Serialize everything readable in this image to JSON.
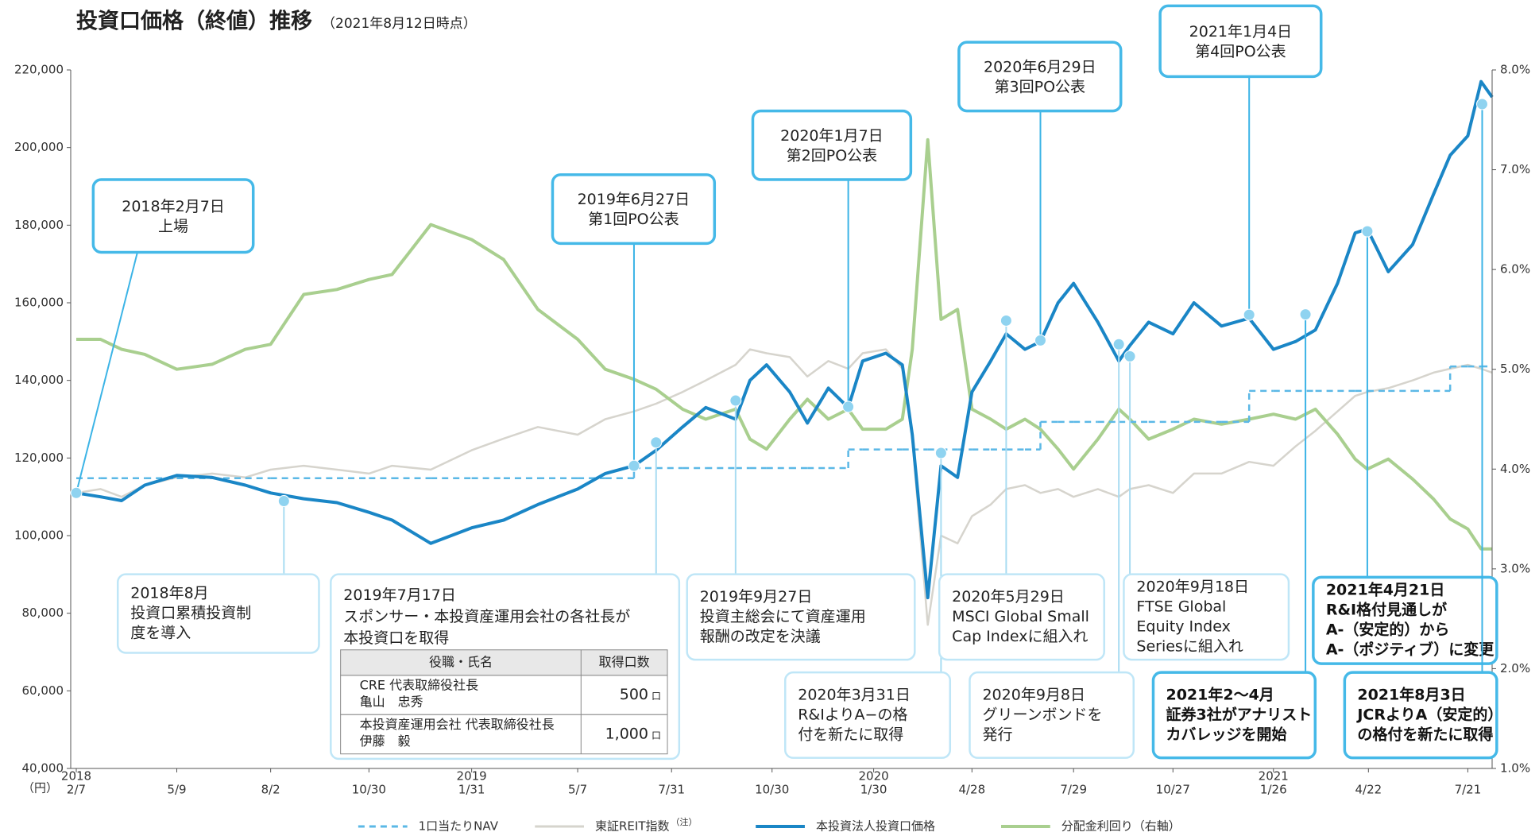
{
  "chart_data": {
    "type": "line",
    "title": "投資口価格（終値）推移",
    "subtitle": "（2021年8月12日時点）",
    "y_unit": "（円）",
    "xlim": [
      "2018-02-07",
      "2021-08-12"
    ],
    "xticks": [
      {
        "value": "2018-02-07",
        "label": "2/7",
        "year": "2018"
      },
      {
        "value": "2018-05-09",
        "label": "5/9"
      },
      {
        "value": "2018-08-02",
        "label": "8/2"
      },
      {
        "value": "2018-10-30",
        "label": "10/30"
      },
      {
        "value": "2019-01-31",
        "label": "1/31",
        "year": "2019"
      },
      {
        "value": "2019-05-07",
        "label": "5/7"
      },
      {
        "value": "2019-07-31",
        "label": "7/31"
      },
      {
        "value": "2019-10-30",
        "label": "10/30"
      },
      {
        "value": "2020-01-30",
        "label": "1/30",
        "year": "2020"
      },
      {
        "value": "2020-04-28",
        "label": "4/28"
      },
      {
        "value": "2020-07-29",
        "label": "7/29"
      },
      {
        "value": "2020-10-27",
        "label": "10/27"
      },
      {
        "value": "2021-01-26",
        "label": "1/26",
        "year": "2021"
      },
      {
        "value": "2021-04-22",
        "label": "4/22"
      },
      {
        "value": "2021-07-21",
        "label": "7/21"
      }
    ],
    "ylim": [
      40000,
      220000
    ],
    "yticks": [
      {
        "value": 40000,
        "label": "40,000"
      },
      {
        "value": 60000,
        "label": "60,000"
      },
      {
        "value": 80000,
        "label": "80,000"
      },
      {
        "value": 100000,
        "label": "100,000"
      },
      {
        "value": 120000,
        "label": "120,000"
      },
      {
        "value": 140000,
        "label": "140,000"
      },
      {
        "value": 160000,
        "label": "160,000"
      },
      {
        "value": 180000,
        "label": "180,000"
      },
      {
        "value": 200000,
        "label": "200,000"
      },
      {
        "value": 220000,
        "label": "220,000"
      }
    ],
    "y2lim": [
      1,
      8
    ],
    "y2ticks": [
      {
        "value": 1,
        "label": "1.0%"
      },
      {
        "value": 2,
        "label": "2.0%"
      },
      {
        "value": 3,
        "label": "3.0%"
      },
      {
        "value": 4,
        "label": "4.0%"
      },
      {
        "value": 5,
        "label": "5.0%"
      },
      {
        "value": 6,
        "label": "6.0%"
      },
      {
        "value": 7,
        "label": "7.0%"
      },
      {
        "value": 8,
        "label": "8.0%"
      }
    ],
    "x": [
      "2018-02-07",
      "2018-03-01",
      "2018-03-20",
      "2018-04-10",
      "2018-05-09",
      "2018-06-10",
      "2018-07-10",
      "2018-08-02",
      "2018-09-01",
      "2018-10-01",
      "2018-10-30",
      "2018-11-20",
      "2018-12-25",
      "2019-01-31",
      "2019-03-01",
      "2019-04-01",
      "2019-05-07",
      "2019-06-01",
      "2019-06-27",
      "2019-07-17",
      "2019-08-10",
      "2019-08-31",
      "2019-09-27",
      "2019-10-10",
      "2019-10-25",
      "2019-11-15",
      "2019-12-01",
      "2019-12-20",
      "2020-01-07",
      "2020-01-20",
      "2020-02-10",
      "2020-02-25",
      "2020-03-05",
      "2020-03-19",
      "2020-03-31",
      "2020-04-15",
      "2020-04-28",
      "2020-05-15",
      "2020-05-29",
      "2020-06-15",
      "2020-06-29",
      "2020-07-15",
      "2020-07-29",
      "2020-08-20",
      "2020-09-08",
      "2020-09-18",
      "2020-10-05",
      "2020-10-27",
      "2020-11-15",
      "2020-12-10",
      "2021-01-04",
      "2021-01-26",
      "2021-02-15",
      "2021-03-05",
      "2021-03-25",
      "2021-04-10",
      "2021-04-21",
      "2021-05-10",
      "2021-06-01",
      "2021-06-20",
      "2021-07-05",
      "2021-07-21",
      "2021-08-02",
      "2021-08-12"
    ],
    "series": [
      {
        "name": "1口当たりNAV",
        "color": "#5bb8e6",
        "dash": true,
        "step": true,
        "values": [
          114800,
          114800,
          114800,
          114800,
          114800,
          114800,
          114800,
          114800,
          114800,
          114800,
          114800,
          114800,
          114800,
          114800,
          114800,
          114800,
          114800,
          114800,
          117400,
          117400,
          117400,
          117400,
          117400,
          117400,
          117400,
          117400,
          117400,
          117400,
          122200,
          122200,
          122200,
          122200,
          122200,
          122200,
          122200,
          122200,
          122200,
          122200,
          122200,
          122200,
          129300,
          129300,
          129300,
          129300,
          129300,
          129300,
          129300,
          129300,
          129300,
          129300,
          137300,
          137300,
          137300,
          137300,
          137300,
          137300,
          137300,
          137300,
          137300,
          137300,
          143600,
          143600,
          143600,
          143600
        ]
      },
      {
        "name": "東証REIT指数",
        "note": "（注）",
        "color": "#d6d4cd",
        "values": [
          111000,
          112000,
          110000,
          113000,
          115000,
          116000,
          115000,
          117000,
          118000,
          117000,
          116000,
          118000,
          117000,
          122000,
          125000,
          128000,
          126000,
          130000,
          132000,
          134000,
          137000,
          140000,
          144000,
          148000,
          147000,
          146000,
          141000,
          145000,
          143000,
          147000,
          148000,
          143000,
          125000,
          77000,
          100000,
          98000,
          105000,
          108000,
          112000,
          113000,
          111000,
          112000,
          110000,
          112000,
          110000,
          112000,
          113000,
          111000,
          116000,
          116000,
          119000,
          118000,
          123000,
          127000,
          132000,
          136000,
          137000,
          138000,
          140000,
          142000,
          143000,
          144000,
          143000,
          142000
        ]
      },
      {
        "name": "本投資法人投資口価格",
        "color": "#1a86c6",
        "width": 4,
        "values": [
          111000,
          110000,
          109000,
          113000,
          115500,
          115000,
          113000,
          111000,
          109500,
          108500,
          106000,
          104000,
          98000,
          102000,
          104000,
          108000,
          112000,
          116000,
          118000,
          122000,
          128000,
          133000,
          130000,
          140000,
          144000,
          137000,
          129000,
          138000,
          133000,
          145000,
          147000,
          144000,
          126000,
          84000,
          118000,
          115000,
          137000,
          145000,
          152000,
          148000,
          150000,
          160000,
          165000,
          155000,
          145000,
          149000,
          155000,
          152000,
          160000,
          154000,
          156000,
          148000,
          150000,
          153000,
          165000,
          178000,
          179000,
          168000,
          175000,
          188000,
          198000,
          203000,
          217000,
          213000
        ]
      },
      {
        "name": "分配金利回り（右軸）",
        "color": "#a9cf8f",
        "axis": "y2",
        "width": 4,
        "values": [
          5.3,
          5.3,
          5.2,
          5.15,
          5.0,
          5.05,
          5.2,
          5.25,
          5.75,
          5.8,
          5.9,
          5.95,
          6.45,
          6.3,
          6.1,
          5.6,
          5.3,
          5.0,
          4.9,
          4.8,
          4.6,
          4.5,
          4.6,
          4.3,
          4.2,
          4.5,
          4.7,
          4.5,
          4.6,
          4.4,
          4.4,
          4.5,
          5.2,
          7.3,
          5.5,
          5.6,
          4.6,
          4.5,
          4.4,
          4.5,
          4.4,
          4.2,
          4.0,
          4.3,
          4.6,
          4.5,
          4.3,
          4.4,
          4.5,
          4.45,
          4.5,
          4.55,
          4.5,
          4.6,
          4.35,
          4.1,
          4.0,
          4.1,
          3.9,
          3.7,
          3.5,
          3.4,
          3.2,
          3.2
        ]
      }
    ],
    "annotations": [
      {
        "x": "2018-02-07",
        "value": 111000,
        "style": "major",
        "lines": [
          "2018年2月7日",
          "上場"
        ]
      },
      {
        "x": "2019-06-27",
        "value": 118000,
        "style": "major",
        "lines": [
          "2019年6月27日",
          "第1回PO公表"
        ]
      },
      {
        "x": "2020-01-07",
        "value": 133200,
        "style": "major",
        "lines": [
          "2020年1月7日",
          "第2回PO公表"
        ]
      },
      {
        "x": "2020-06-29",
        "value": 150300,
        "style": "major",
        "lines": [
          "2020年6月29日",
          "第3回PO公表"
        ]
      },
      {
        "x": "2021-01-04",
        "value": 156900,
        "style": "major",
        "lines": [
          "2021年1月4日",
          "第4回PO公表"
        ]
      },
      {
        "x": "2018-08-14",
        "value": 108900,
        "style": "minor",
        "lines": [
          "2018年8月",
          "投資口累積投資制",
          "度を導入"
        ]
      },
      {
        "x": "2019-07-17",
        "value": 124000,
        "style": "minor",
        "lines": [
          "2019年7月17日",
          "スポンサー・本投資産運用会社の各社長が",
          "本投資口を取得"
        ],
        "table": {
          "header": [
            "役職・氏名",
            "取得口数"
          ],
          "rows": [
            {
              "name": [
                "CRE 代表取締役社長",
                "亀山　忠秀"
              ],
              "count": "500",
              "unit": "口"
            },
            {
              "name": [
                "本投資産運用会社 代表取締役社長",
                "伊藤　毅"
              ],
              "count": "1,000",
              "unit": "口"
            }
          ]
        }
      },
      {
        "x": "2019-09-27",
        "value": 134800,
        "style": "minor",
        "lines": [
          "2019年9月27日",
          "投資主総会にて資産運用",
          "報酬の改定を決議"
        ]
      },
      {
        "x": "2020-03-31",
        "value": 121300,
        "style": "minor",
        "lines": [
          "2020年3月31日",
          "R&IよりA−の格",
          "付を新たに取得"
        ]
      },
      {
        "x": "2020-05-29",
        "value": 155400,
        "style": "minor",
        "lines": [
          "2020年5月29日",
          "MSCI Global Small",
          "Cap Indexに組入れ"
        ]
      },
      {
        "x": "2020-09-08",
        "value": 149300,
        "style": "minor",
        "lines": [
          "2020年9月8日",
          "グリーンボンドを",
          "発行"
        ]
      },
      {
        "x": "2020-09-18",
        "value": 146200,
        "style": "minor",
        "lines": [
          "2020年9月18日",
          "FTSE Global",
          "Equity Index",
          "Seriesに組入れ"
        ]
      },
      {
        "x": "2021-02-24",
        "value": 157000,
        "style": "highlight",
        "lines": [
          "2021年2〜4月",
          "証券3社がアナリスト",
          "カバレッジを開始"
        ]
      },
      {
        "x": "2021-04-21",
        "value": 178400,
        "style": "highlight",
        "lines": [
          "2021年4月21日",
          "R&I格付見通しが",
          "A-（安定的）から",
          "A-（ポジティブ）に変更"
        ]
      },
      {
        "x": "2021-08-03",
        "value": 211200,
        "style": "highlight",
        "lines": [
          "2021年8月3日",
          "JCRよりA（安定的）",
          "の格付を新たに取得"
        ]
      }
    ]
  }
}
